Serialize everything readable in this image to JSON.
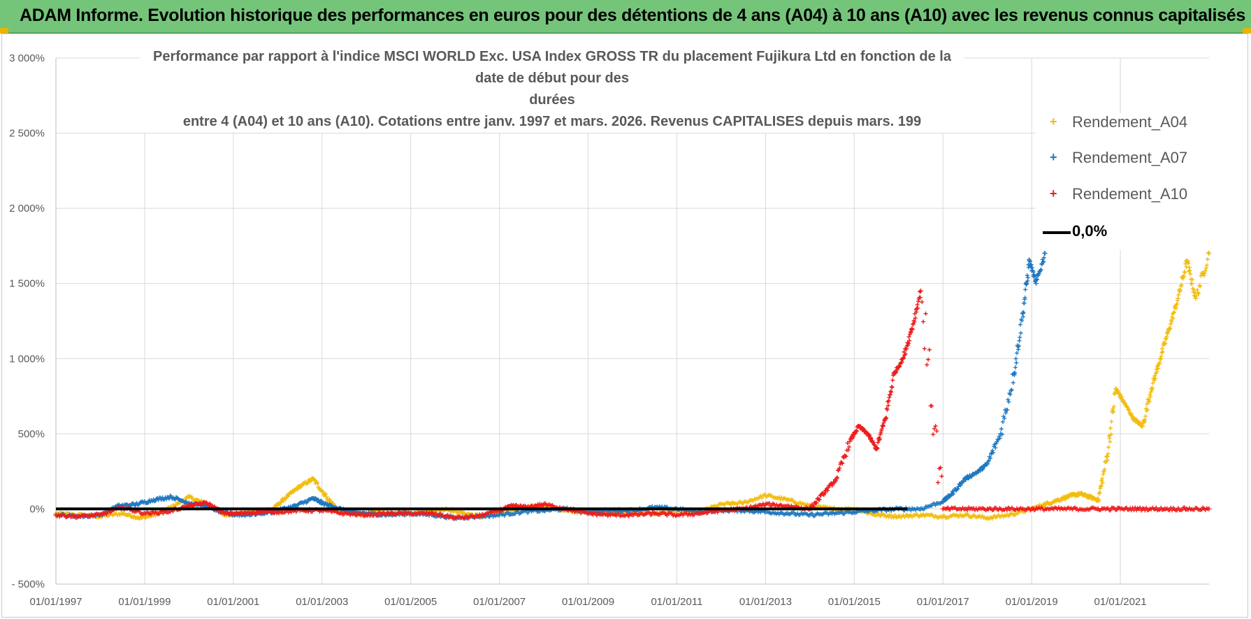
{
  "header": {
    "banner_title": "ADAM Informe. Evolution historique des performances en euros pour des détentions de 4 ans (A04) à 10 ans (A10) avec les revenus connus capitalisés"
  },
  "colors": {
    "banner_bg": "#74c57a",
    "A04": "#f2bd0f",
    "A07": "#1f78c1",
    "A10": "#ee1c1c",
    "zero_line": "#000000",
    "grid": "#d9d9d9",
    "axis_text": "#595959"
  },
  "chart_data": {
    "type": "scatter",
    "title_lines": [
      "Performance par rapport à l'indice MSCI WORLD Exc. USA Index GROSS TR  du placement Fujikura Ltd en fonction de la date de début pour des",
      "durées",
      "entre 4 (A04) et 10 ans (A10).  Cotations entre janv. 1997 et mars. 2026. Revenus CAPITALISES depuis mars. 199"
    ],
    "xlabel": "",
    "ylabel": "",
    "x_range": [
      1997.0,
      2023.0
    ],
    "ylim": [
      -500,
      3000
    ],
    "y_ticks": [
      -500,
      0,
      500,
      1000,
      1500,
      2000,
      2500,
      3000
    ],
    "y_tick_labels": [
      "- 500%",
      "0%",
      "500%",
      "1 000%",
      "1 500%",
      "2 000%",
      "2 500%",
      "3 000%"
    ],
    "x_ticks": [
      1997,
      1999,
      2001,
      2003,
      2005,
      2007,
      2009,
      2011,
      2013,
      2015,
      2017,
      2019,
      2021
    ],
    "x_tick_labels": [
      "01/01/1997",
      "01/01/1999",
      "01/01/2001",
      "01/01/2003",
      "01/01/2005",
      "01/01/2007",
      "01/01/2009",
      "01/01/2011",
      "01/01/2013",
      "01/01/2015",
      "01/01/2017",
      "01/01/2019",
      "01/01/2021"
    ],
    "legend_position": "right",
    "series": [
      {
        "name": "Rendement_A04",
        "color_key": "A04",
        "x": [
          1997.0,
          1997.5,
          1998.0,
          1998.5,
          1998.9,
          1999.2,
          1999.6,
          2000.0,
          2000.4,
          2000.8,
          2001.2,
          2001.5,
          2001.9,
          2002.2,
          2002.5,
          2002.8,
          2003.1,
          2003.4,
          2003.8,
          2004.2,
          2004.6,
          2005.0,
          2005.4,
          2005.8,
          2006.2,
          2006.6,
          2007.0,
          2007.5,
          2008.0,
          2008.5,
          2009.0,
          2009.5,
          2010.0,
          2010.5,
          2011.0,
          2011.5,
          2012.0,
          2012.5,
          2013.0,
          2013.5,
          2014.0,
          2014.5,
          2015.0,
          2015.5,
          2016.0,
          2016.5,
          2017.0,
          2017.5,
          2018.0,
          2018.5,
          2019.0,
          2019.3,
          2019.6,
          2019.9,
          2020.1,
          2020.3,
          2020.5,
          2020.7,
          2020.9,
          2021.1,
          2021.3,
          2021.5,
          2021.7,
          2021.9,
          2022.1,
          2022.3,
          2022.5,
          2022.7,
          2023.0
        ],
        "y": [
          -30,
          -40,
          -50,
          -30,
          -60,
          -40,
          10,
          80,
          30,
          -40,
          -30,
          -20,
          0,
          80,
          150,
          200,
          80,
          -20,
          -40,
          -20,
          -30,
          -30,
          -20,
          0,
          -30,
          -50,
          -30,
          10,
          20,
          -10,
          -20,
          -30,
          -20,
          -30,
          -10,
          -20,
          30,
          40,
          90,
          60,
          20,
          0,
          0,
          -40,
          -50,
          -40,
          -50,
          -40,
          -60,
          -40,
          0,
          30,
          60,
          90,
          100,
          80,
          60,
          350,
          800,
          700,
          600,
          550,
          800,
          1000,
          1200,
          1400,
          1650,
          1400,
          1700
        ]
      },
      {
        "name": "Rendement_A07",
        "color_key": "A07",
        "x": [
          1997.0,
          1997.5,
          1998.0,
          1998.4,
          1998.8,
          1999.2,
          1999.6,
          2000.0,
          2000.4,
          2000.8,
          2001.2,
          2001.6,
          2002.0,
          2002.4,
          2002.8,
          2003.0,
          2003.3,
          2003.6,
          2004.0,
          2004.5,
          2005.0,
          2005.5,
          2006.0,
          2006.5,
          2007.0,
          2007.5,
          2008.0,
          2008.5,
          2009.0,
          2009.5,
          2010.0,
          2010.5,
          2011.0,
          2011.5,
          2012.0,
          2012.5,
          2013.0,
          2013.5,
          2014.0,
          2014.5,
          2015.0,
          2015.5,
          2016.0,
          2016.5,
          2017.0,
          2017.2,
          2017.5,
          2017.8,
          2018.0,
          2018.3,
          2018.6,
          2018.8,
          2018.95,
          2019.1,
          2019.3
        ],
        "y": [
          -40,
          -50,
          -40,
          20,
          30,
          60,
          80,
          40,
          20,
          -30,
          -40,
          -30,
          -10,
          20,
          70,
          40,
          10,
          -20,
          -30,
          -40,
          -30,
          -40,
          -60,
          -50,
          -40,
          -20,
          -10,
          0,
          -20,
          -10,
          -10,
          10,
          0,
          -20,
          -10,
          -10,
          -20,
          -30,
          -40,
          -30,
          -20,
          -10,
          0,
          0,
          50,
          100,
          200,
          250,
          300,
          500,
          900,
          1300,
          1650,
          1500,
          1700
        ]
      },
      {
        "name": "Rendement_A10",
        "color_key": "A10",
        "x": [
          1997.0,
          1997.5,
          1998.0,
          1998.5,
          1999.0,
          1999.5,
          2000.0,
          2000.4,
          2000.8,
          2001.2,
          2001.6,
          2002.0,
          2002.5,
          2003.0,
          2003.5,
          2004.0,
          2004.5,
          2005.0,
          2005.5,
          2006.0,
          2006.5,
          2007.0,
          2007.3,
          2007.6,
          2008.0,
          2008.5,
          2009.0,
          2009.5,
          2010.0,
          2010.5,
          2011.0,
          2011.5,
          2012.0,
          2012.5,
          2013.0,
          2013.5,
          2014.0,
          2014.3,
          2014.6,
          2014.9,
          2015.1,
          2015.3,
          2015.5,
          2015.7,
          2015.9,
          2016.1,
          2016.3,
          2016.5,
          2017.0,
          2017.5,
          2018.0,
          2018.5,
          2019.0,
          2019.5,
          2020.0,
          2020.5,
          2021.0,
          2021.5,
          2022.0,
          2022.5,
          2023.0
        ],
        "y": [
          -40,
          -50,
          -40,
          10,
          -30,
          -20,
          20,
          40,
          -30,
          -30,
          -20,
          -20,
          -10,
          -10,
          -30,
          -40,
          -30,
          -30,
          -30,
          -60,
          -50,
          -10,
          20,
          10,
          30,
          0,
          -30,
          -40,
          -40,
          -30,
          -40,
          -30,
          -10,
          0,
          30,
          20,
          0,
          100,
          200,
          450,
          550,
          500,
          400,
          600,
          900,
          1000,
          1200,
          1450,
          0,
          0,
          0,
          0,
          0,
          0,
          0,
          0,
          0,
          0,
          0,
          0,
          0
        ]
      }
    ],
    "reference_line": {
      "name": "0,0%",
      "y": 0,
      "x_start": 1997.0,
      "x_end": 2016.2
    }
  }
}
